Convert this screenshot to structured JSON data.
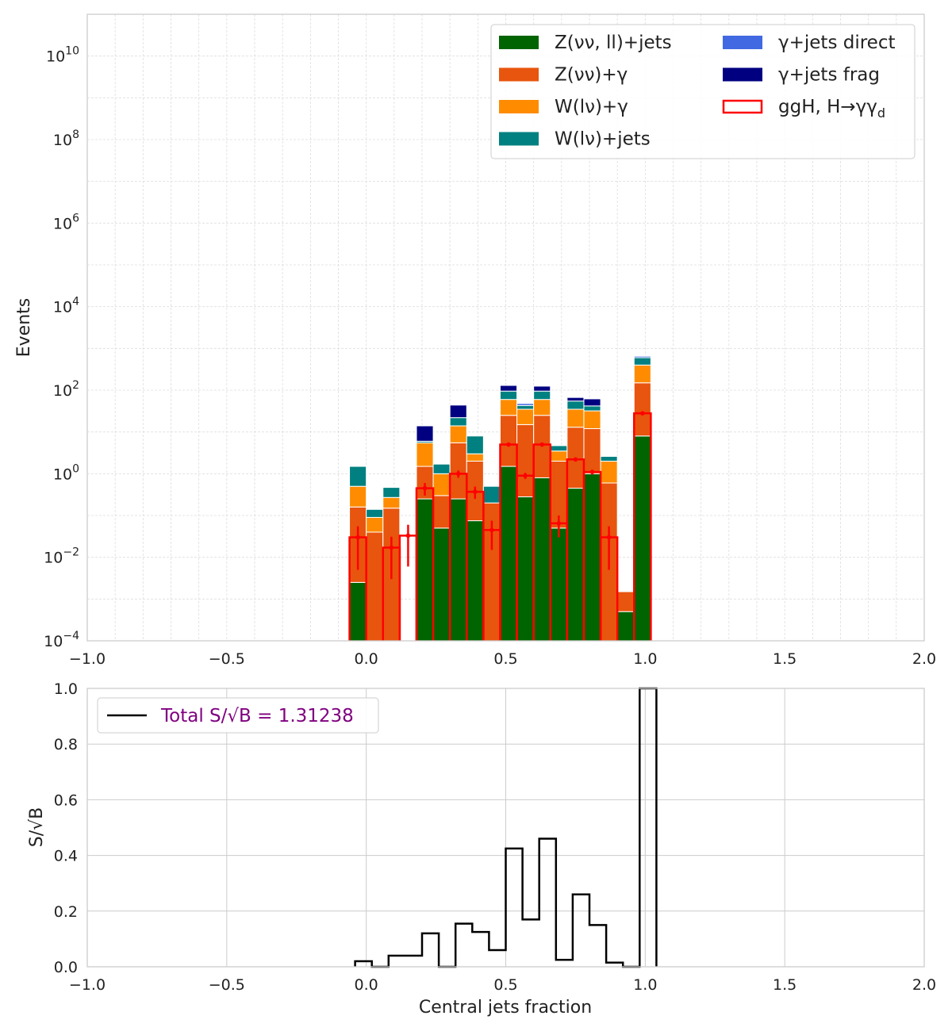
{
  "chart_data": [
    {
      "type": "bar",
      "stacked": true,
      "scale": "log",
      "xlabel": "",
      "ylabel": "Events",
      "xlim": [
        -1.0,
        2.0
      ],
      "ylim": [
        0.0001,
        100000000000
      ],
      "grid": true,
      "legend": "top-right",
      "x_ticks": [
        "−1.0",
        "−0.5",
        "0.0",
        "0.5",
        "1.0",
        "1.5",
        "2.0"
      ],
      "y_ticks": [
        {
          "base": "10",
          "exp": "−4",
          "value": 0.0001
        },
        {
          "base": "10",
          "exp": "−2",
          "value": 0.01
        },
        {
          "base": "10",
          "exp": "0",
          "value": 1
        },
        {
          "base": "10",
          "exp": "2",
          "value": 100
        },
        {
          "base": "10",
          "exp": "4",
          "value": 10000
        },
        {
          "base": "10",
          "exp": "6",
          "value": 1000000
        },
        {
          "base": "10",
          "exp": "8",
          "value": 100000000
        },
        {
          "base": "10",
          "exp": "10",
          "value": 10000000000
        }
      ],
      "bin_width": 0.06,
      "bins": [
        -0.03,
        0.03,
        0.09,
        0.15,
        0.21,
        0.27,
        0.33,
        0.39,
        0.45,
        0.51,
        0.57,
        0.63,
        0.69,
        0.75,
        0.81,
        0.87,
        0.93,
        0.99
      ],
      "series": [
        {
          "name": "Z(νν, ll)+jets",
          "color": "#006400",
          "values": [
            0.0025,
            0,
            0,
            0,
            0.25,
            0.05,
            0.25,
            0.075,
            0,
            1.5,
            0.28,
            0.8,
            0.05,
            0.45,
            1.0,
            0,
            0.0005,
            8.0
          ]
        },
        {
          "name": "Z(νν)+γ",
          "color": "#e8550e",
          "values": [
            0.1575,
            0.04,
            0.15,
            0,
            1.25,
            0.25,
            5.25,
            1.925,
            0.2,
            23.5,
            14.72,
            24.2,
            1.95,
            12.55,
            11.0,
            0.6,
            0.001,
            142.0
          ]
        },
        {
          "name": "W(lν)+γ",
          "color": "#ff8c00",
          "values": [
            0.34,
            0.05,
            0.12,
            0,
            4.0,
            0.7,
            8.5,
            1.0,
            0,
            35.0,
            20.0,
            35.0,
            1.5,
            22.0,
            20.0,
            1.4,
            0,
            250.0
          ]
        },
        {
          "name": "W(lν)+jets",
          "color": "#008080",
          "values": [
            1.0,
            0.05,
            0.2,
            0,
            0.5,
            0.7,
            8.0,
            5.0,
            0.3,
            35.0,
            8.0,
            35.0,
            1.2,
            20.0,
            10.0,
            0.6,
            0,
            200.0
          ]
        },
        {
          "name": "γ+jets direct",
          "color": "#4169e1",
          "values": [
            0,
            0,
            0,
            0,
            0,
            0,
            0,
            0,
            0,
            0,
            5.0,
            0,
            0,
            0,
            0,
            0,
            0,
            50.0
          ]
        },
        {
          "name": "γ+jets frag",
          "color": "#000080",
          "values": [
            0,
            0,
            0,
            0,
            8.0,
            0,
            22.0,
            0,
            0,
            35.0,
            0,
            30.0,
            0,
            12.0,
            20.0,
            0,
            0,
            0
          ]
        }
      ],
      "signal": {
        "name": "ggH, H→γγ",
        "name_subscript": "d",
        "color": "#ff0000",
        "values": [
          0.03,
          0,
          0.017,
          0.033,
          0.45,
          0,
          1.0,
          0.37,
          0.045,
          5.0,
          0.9,
          5.0,
          0.065,
          2.2,
          1.1,
          0.03,
          0,
          28.0
        ],
        "err_low": [
          0.005,
          0,
          0.003,
          0.006,
          0.3,
          0,
          0.8,
          0.25,
          0.015,
          4.5,
          0.75,
          4.5,
          0.03,
          2.0,
          0.95,
          0.005,
          0,
          26.0
        ],
        "err_high": [
          0.055,
          0,
          0.031,
          0.06,
          0.6,
          0,
          1.2,
          0.49,
          0.075,
          5.5,
          1.05,
          5.5,
          0.1,
          2.4,
          1.25,
          0.055,
          0,
          30.0
        ]
      }
    },
    {
      "type": "line",
      "step": true,
      "xlabel": "Central jets fraction",
      "ylabel": "S/√B",
      "xlim": [
        -1.0,
        2.0
      ],
      "ylim": [
        0.0,
        1.0
      ],
      "grid": true,
      "legend": "top-left",
      "x_ticks": [
        "−1.0",
        "−0.5",
        "0.0",
        "0.5",
        "1.0",
        "1.5",
        "2.0"
      ],
      "y_ticks": [
        "0.0",
        "0.2",
        "0.4",
        "0.6",
        "0.8",
        "1.0"
      ],
      "bin_edges": [
        -0.04,
        0.02,
        0.08,
        0.14,
        0.2,
        0.26,
        0.32,
        0.38,
        0.44,
        0.5,
        0.56,
        0.62,
        0.68,
        0.74,
        0.8,
        0.86,
        0.92,
        0.98,
        1.04
      ],
      "values": [
        0.02,
        0,
        0.04,
        0.04,
        0.12,
        0,
        0.155,
        0.125,
        0.06,
        0.425,
        0.17,
        0.46,
        0.025,
        0.26,
        0.15,
        0.015,
        0,
        1.2
      ],
      "series": [
        {
          "name": "Total S/√B = 1.31238",
          "color": "#000000",
          "label_color": "#800080"
        }
      ]
    }
  ]
}
